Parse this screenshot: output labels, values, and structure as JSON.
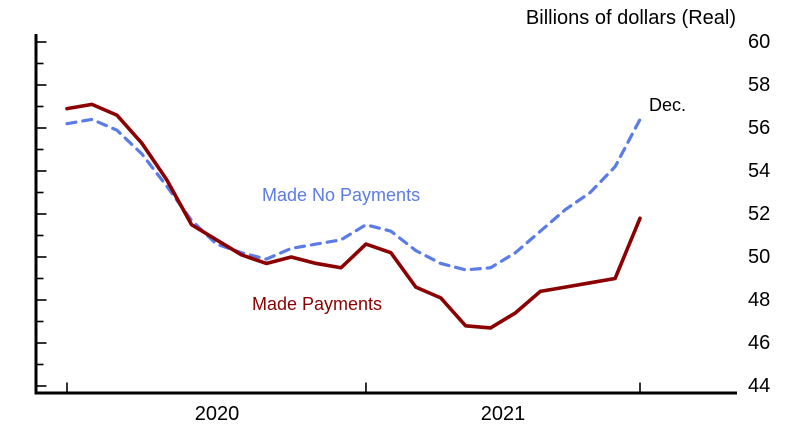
{
  "header": {
    "title": "Billions of dollars (Real)"
  },
  "chart_data": {
    "type": "line",
    "title": "Billions of dollars (Real)",
    "xlabel": "",
    "ylabel": "Billions of dollars (Real)",
    "ylim": [
      44,
      60
    ],
    "ytick_labels": [
      "60",
      "58",
      "56",
      "54",
      "52",
      "50",
      "48",
      "46",
      "44"
    ],
    "xtick_labels": [
      "2020",
      "2021"
    ],
    "xtick_indices": [
      0,
      12,
      23
    ],
    "grid": false,
    "legend_position": "inline-labels",
    "x": [
      "Jan 2020",
      "Feb 2020",
      "Mar 2020",
      "Apr 2020",
      "May 2020",
      "Jun 2020",
      "Jul 2020",
      "Aug 2020",
      "Sep 2020",
      "Oct 2020",
      "Nov 2020",
      "Dec 2020",
      "Jan 2021",
      "Feb 2021",
      "Mar 2021",
      "Apr 2021",
      "May 2021",
      "Jun 2021",
      "Jul 2021",
      "Aug 2021",
      "Sep 2021",
      "Oct 2021",
      "Nov 2021",
      "Dec 2021"
    ],
    "series": [
      {
        "name": "Made No Payments",
        "style": "dashed",
        "color": "#5b7ce6",
        "width": 3.2,
        "values": [
          56.2,
          56.4,
          55.9,
          54.8,
          53.3,
          51.7,
          50.6,
          50.2,
          49.9,
          50.4,
          50.6,
          50.8,
          51.5,
          51.2,
          50.3,
          49.7,
          49.4,
          49.5,
          50.2,
          51.2,
          52.2,
          53.0,
          54.2,
          56.4
        ]
      },
      {
        "name": "Made Payments",
        "style": "solid",
        "color": "#8b0000",
        "width": 3.6,
        "values": [
          56.9,
          57.1,
          56.6,
          55.3,
          53.6,
          51.5,
          50.8,
          50.1,
          49.7,
          50.0,
          49.7,
          49.5,
          50.6,
          50.2,
          48.6,
          48.1,
          46.8,
          46.7,
          47.4,
          48.4,
          48.6,
          48.8,
          49.0,
          51.8
        ]
      }
    ],
    "annotations": [
      {
        "text": "Dec.",
        "target": "Made No Payments",
        "position": "end-of-line"
      }
    ]
  },
  "labels": {
    "series_no_payments": "Made No Payments",
    "series_payments": "Made Payments",
    "dec": "Dec.",
    "year_2020": "2020",
    "year_2021": "2021"
  }
}
